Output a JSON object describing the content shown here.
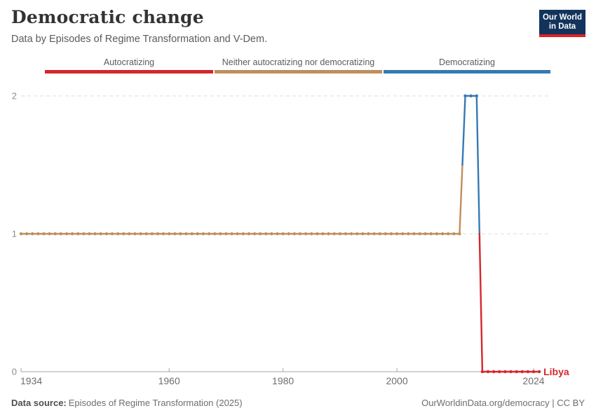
{
  "header": {
    "title": "Democratic change",
    "subtitle": "Data by Episodes of Regime Transformation and V-Dem.",
    "logo": {
      "line1": "Our World",
      "line2": "in Data",
      "bg_color": "#13335c",
      "accent_color": "#dc2227"
    }
  },
  "chart_data": {
    "type": "line",
    "entity": "Libya",
    "entity_color": "#d6252c",
    "x_ticks": [
      1934,
      1960,
      1980,
      2000,
      2024
    ],
    "y_ticks": [
      0,
      1,
      2
    ],
    "xlim": [
      1934,
      2025
    ],
    "ylim": [
      0,
      2
    ],
    "grid": true,
    "legend_position": "top",
    "legend": [
      {
        "label": "Autocratizing",
        "color": "#d6252c"
      },
      {
        "label": "Neither autocratizing nor democratizing",
        "color": "#bf8e5c"
      },
      {
        "label": "Democratizing",
        "color": "#3679b2"
      }
    ],
    "series": [
      {
        "name": "Neither autocratizing nor democratizing",
        "color": "#bf8e5c",
        "from_year": 1934,
        "to_year": 2011,
        "value": 1
      },
      {
        "name": "Democratizing",
        "color": "#3679b2",
        "from_year": 2012,
        "to_year": 2014,
        "value": 2
      },
      {
        "name": "Autocratizing",
        "color": "#d6252c",
        "from_year": 2015,
        "to_year": 2025,
        "value": 0
      }
    ],
    "colors": {
      "gridline": "#dcdcdc",
      "axis": "#a3a3a3",
      "y_tick_label": "#8d8d8d",
      "x_tick_label": "#6e6e6e"
    }
  },
  "footer": {
    "source_label": "Data source:",
    "source_value": "Episodes of Regime Transformation (2025)",
    "link": "OurWorldinData.org/democracy | CC BY"
  }
}
